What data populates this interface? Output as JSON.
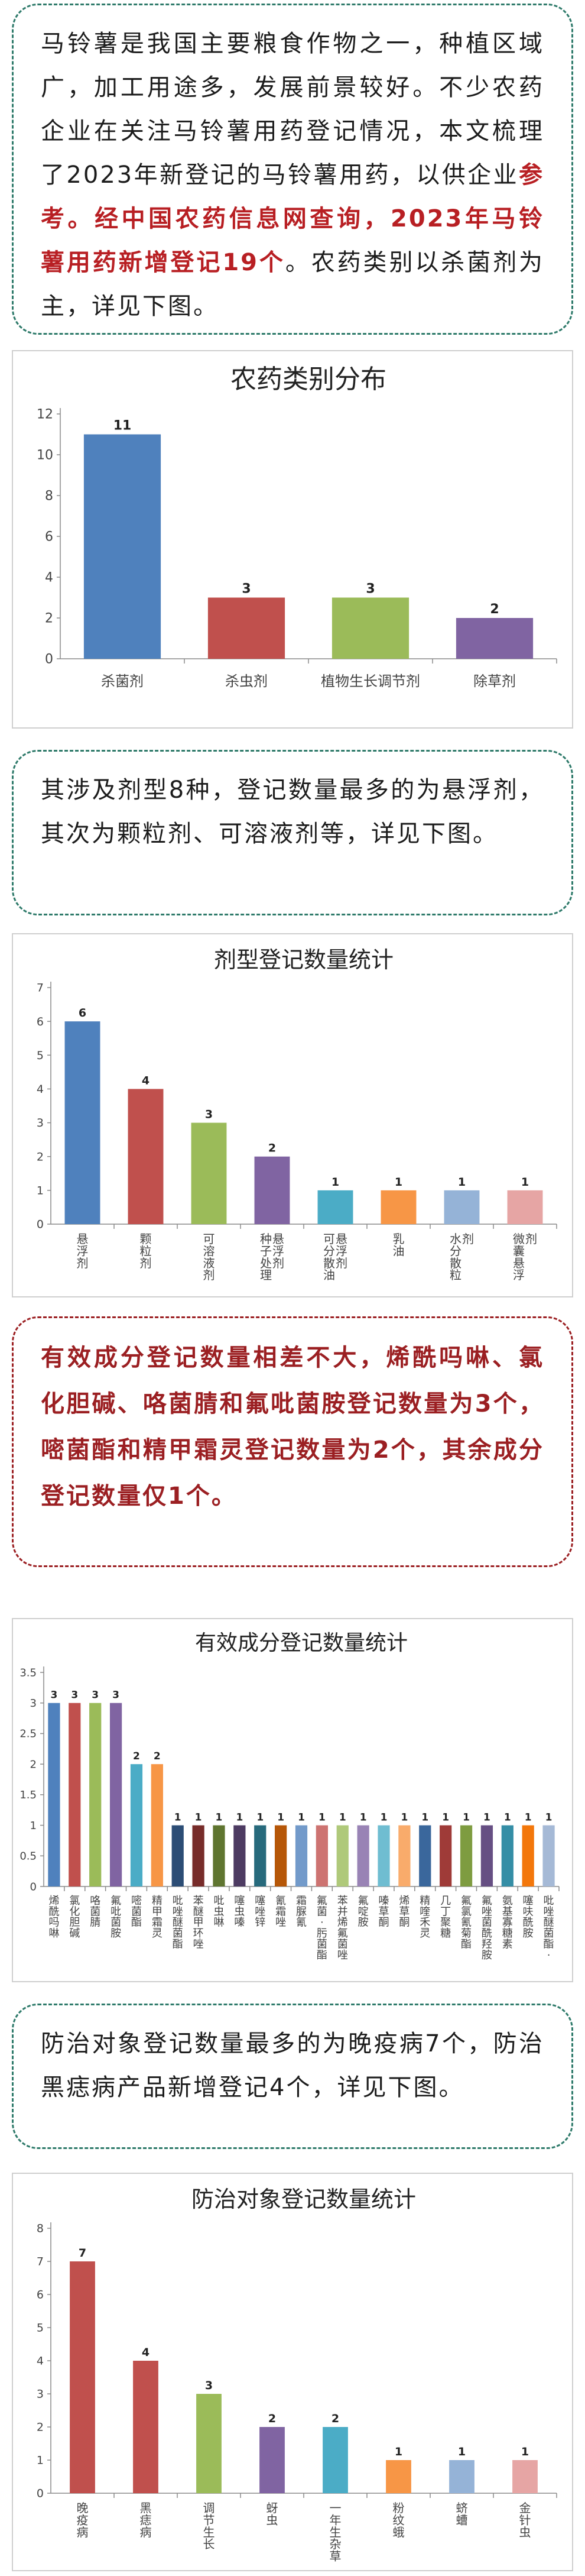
{
  "intro": {
    "part1": "马铃薯是我国主要粮食作物之一，种植区域广，加工用途多，发展前景较好。不少农药企业在关注马铃薯用药登记情况，本文梳理了2023年新登记的马铃薯用药，以供企业",
    "part2": "参考。经中国农药信息网查询，2023年马铃薯用药新增登记19个",
    "part3": "。农药类别以杀菌剂为主，详见下图。"
  },
  "text2": "其涉及剂型8种，登记数量最多的为悬浮剂，其次为颗粒剂、可溶液剂等，详见下图。",
  "text3": "有效成分登记数量相差不大，烯酰吗啉、氯化胆碱、咯菌腈和氟吡菌胺登记数量为3个，嘧菌酯和精甲霜灵登记数量为2个，其余成分登记数量仅1个。",
  "text4": "防治对象登记数量最多的为晚疫病7个，防治黑痣病产品新增登记4个，详见下图。",
  "colors": {
    "green_border": "#2e7a6a",
    "red_text": "#9b1f22",
    "highlight": "#b81f23"
  },
  "chart_data": [
    {
      "type": "bar",
      "title": "农药类别分布",
      "categories": [
        "杀菌剂",
        "杀虫剂",
        "植物生长调节剂",
        "除草剂"
      ],
      "values": [
        11,
        3,
        3,
        2
      ],
      "colors": [
        "#4f81bd",
        "#c0504d",
        "#9bbb59",
        "#8064a2"
      ],
      "ylim": [
        0,
        12
      ],
      "yticks": [
        0,
        2,
        4,
        6,
        8,
        10,
        12
      ],
      "grid": false,
      "xlabel": "",
      "ylabel": ""
    },
    {
      "type": "bar",
      "title": "剂型登记数量统计",
      "categories": [
        "悬浮剂",
        "颗粒剂",
        "可溶液剂",
        "种子处理悬浮剂",
        "可分散油悬浮剂",
        "乳油",
        "水分散粒剂",
        "微囊悬浮剂"
      ],
      "values": [
        6,
        4,
        3,
        2,
        1,
        1,
        1,
        1
      ],
      "colors": [
        "#4f81bd",
        "#c0504d",
        "#9bbb59",
        "#8064a2",
        "#4bacc6",
        "#f79646",
        "#95b3d7",
        "#e6a5a4"
      ],
      "ylim": [
        0,
        7
      ],
      "yticks": [
        0,
        1,
        2,
        3,
        4,
        5,
        6,
        7
      ],
      "grid": false,
      "xlabel": "",
      "ylabel": ""
    },
    {
      "type": "bar",
      "title": "有效成分登记数量统计",
      "categories": [
        "烯酰吗啉",
        "氯化胆碱",
        "咯菌腈",
        "氟吡菌胺",
        "嘧菌酯",
        "精甲霜灵",
        "吡唑醚菌酯",
        "苯醚甲环唑",
        "吡虫啉",
        "噻虫嗪",
        "噻唑锌",
        "氰霜唑",
        "霜脲氰",
        "氟菌·肟菌酯",
        "苯并烯氟菌唑",
        "氟啶胺",
        "嗪草酮",
        "烯草酮",
        "精喹禾灵",
        "几丁聚糖",
        "氟氯氰菊酯",
        "氟唑菌酰羟胺",
        "氨基寡糖素",
        "噻呋酰胺",
        "吡唑醚菌酯·"
      ],
      "values": [
        3,
        3,
        3,
        3,
        2,
        2,
        1,
        1,
        1,
        1,
        1,
        1,
        1,
        1,
        1,
        1,
        1,
        1,
        1,
        1,
        1,
        1,
        1,
        1,
        1
      ],
      "colors": [
        "#4f81bd",
        "#c0504d",
        "#9bbb59",
        "#8064a2",
        "#4bacc6",
        "#f79646",
        "#2c4d75",
        "#772c2a",
        "#5f7530",
        "#4d3b62",
        "#276a7c",
        "#b65708",
        "#729aca",
        "#cd7371",
        "#afc97a",
        "#9983b5",
        "#6fbdd1",
        "#f9ab6b",
        "#3a679c",
        "#9f3b38",
        "#7e9c40",
        "#664f83",
        "#358ea6",
        "#f3770b",
        "#a5b9d6"
      ],
      "ylim": [
        0,
        3.5
      ],
      "yticks": [
        0,
        0.5,
        1,
        1.5,
        2,
        2.5,
        3,
        3.5
      ],
      "grid": false,
      "xlabel": "",
      "ylabel": ""
    },
    {
      "type": "bar",
      "title": "防治对象登记数量统计",
      "categories": [
        "晚疫病",
        "黑痣病",
        "调节生长",
        "蚜虫",
        "一年生杂草",
        "粉纹蛾",
        "蛴螬",
        "金针虫"
      ],
      "values": [
        7,
        4,
        3,
        2,
        2,
        1,
        1,
        1
      ],
      "colors": [
        "#c0504d",
        "#c0504d",
        "#9bbb59",
        "#8064a2",
        "#4bacc6",
        "#f79646",
        "#95b3d7",
        "#e6a5a4"
      ],
      "ylim": [
        0,
        8
      ],
      "yticks": [
        0,
        1,
        2,
        3,
        4,
        5,
        6,
        7,
        8
      ],
      "grid": false,
      "xlabel": "",
      "ylabel": ""
    }
  ]
}
